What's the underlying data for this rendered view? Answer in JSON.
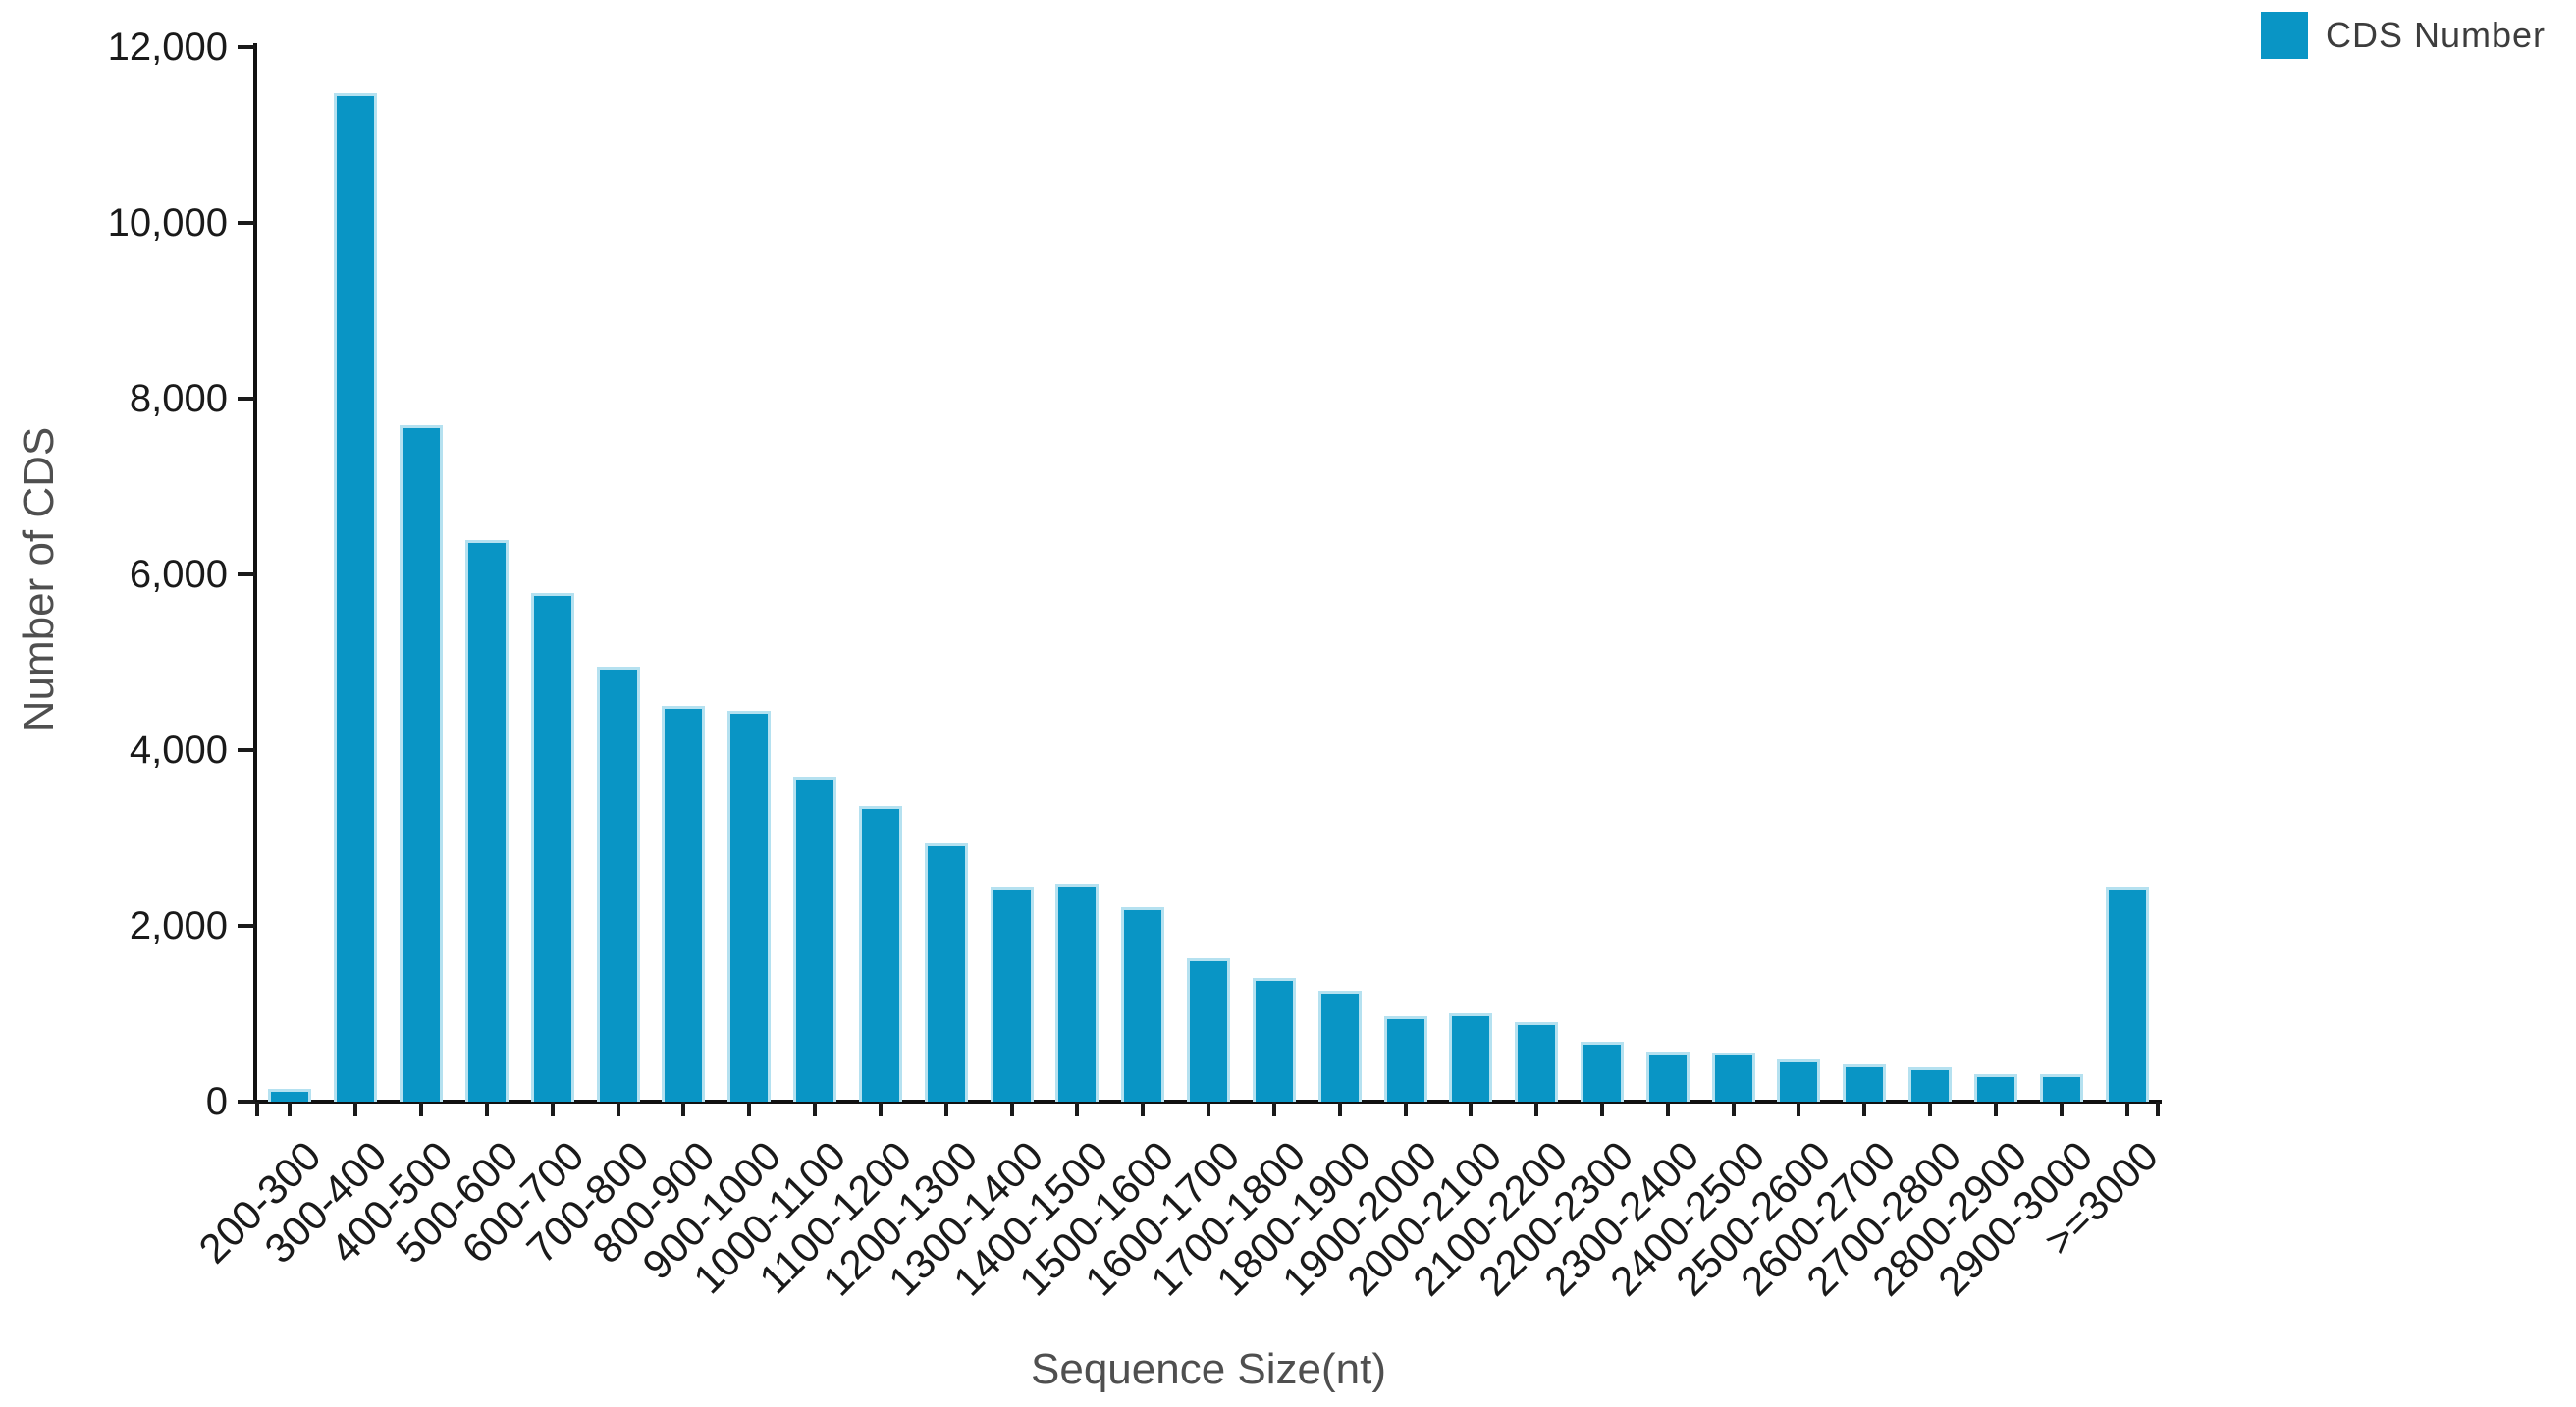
{
  "chart_data": {
    "type": "bar",
    "title": "",
    "xlabel": "Sequence Size(nt)",
    "ylabel": "Number of CDS",
    "categories": [
      "200-300",
      "300-400",
      "400-500",
      "500-600",
      "600-700",
      "700-800",
      "800-900",
      "900-1000",
      "1000-1100",
      "1100-1200",
      "1200-1300",
      "1300-1400",
      "1400-1500",
      "1500-1600",
      "1600-1700",
      "1700-1800",
      "1800-1900",
      "1900-2000",
      "2000-2100",
      "2100-2200",
      "2200-2300",
      "2300-2400",
      "2400-2500",
      "2500-2600",
      "2600-2700",
      "2700-2800",
      "2800-2900",
      "2900-3000",
      ">=3000"
    ],
    "values": [
      140,
      11470,
      7700,
      6390,
      5790,
      4950,
      4500,
      4450,
      3700,
      3360,
      2940,
      2450,
      2480,
      2210,
      1630,
      1410,
      1260,
      970,
      1010,
      900,
      680,
      570,
      560,
      480,
      430,
      390,
      310,
      310,
      2450
    ],
    "series": [
      {
        "name": "CDS Number",
        "color": "#0995c5"
      }
    ],
    "ylim": [
      0,
      12000
    ],
    "ytick_step": 2000,
    "ytick_labels": [
      "0",
      "2,000",
      "4,000",
      "6,000",
      "8,000",
      "10,000",
      "12,000"
    ],
    "grid": false,
    "legend_position": "top-right",
    "bar_fill_color": "#0995c5",
    "bar_edge_color": "#b5e1f0",
    "axis_color": "#111111",
    "tick_label_color": "#1a1a1a",
    "axis_title_color": "#4f4f4f"
  },
  "legend": {
    "label": "CDS Number"
  },
  "axes": {
    "x_title": "Sequence Size(nt)",
    "y_title": "Number of CDS"
  }
}
